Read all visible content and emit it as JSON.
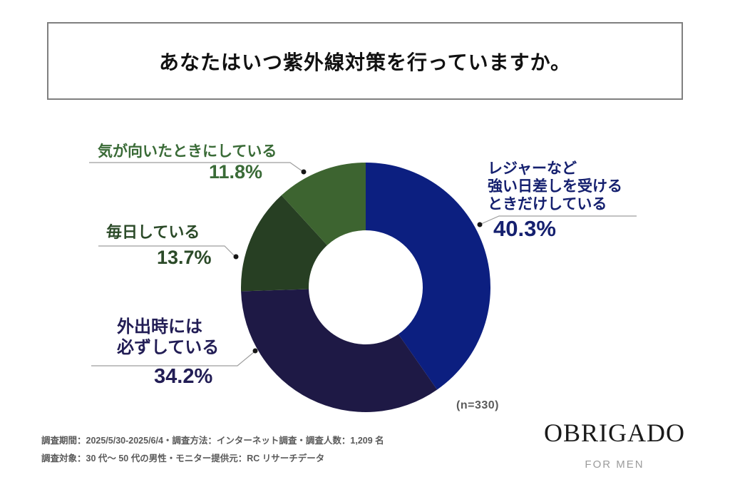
{
  "title": "あなたはいつ紫外線対策を行っていますか。",
  "chart_data": {
    "type": "pie",
    "style": "donut",
    "start_angle_deg": -90,
    "direction": "clockwise",
    "n_label": "(n=330)",
    "segments": [
      {
        "label": "レジャーなど強い日差しを受けるときだけしている",
        "label_lines": [
          "レジャーなど",
          "強い日差しを受ける",
          "ときだけしている"
        ],
        "value": 40.3,
        "value_label": "40.3%",
        "color": "#0c1f80",
        "label_color": "#15206f"
      },
      {
        "label": "外出時には必ずしている",
        "label_lines": [
          "外出時には",
          "必ずしている"
        ],
        "value": 34.2,
        "value_label": "34.2%",
        "color": "#1e1945",
        "label_color": "#221d55"
      },
      {
        "label": "毎日している",
        "label_lines": [
          "毎日している"
        ],
        "value": 13.7,
        "value_label": "13.7%",
        "color": "#273f23",
        "label_color": "#2b4a28"
      },
      {
        "label": "気が向いたときにしている",
        "label_lines": [
          "気が向いたときにしている"
        ],
        "value": 11.8,
        "value_label": "11.8%",
        "color": "#3d6430",
        "label_color": "#3a6b37"
      }
    ]
  },
  "footer": {
    "line1": "調査期間：2025/5/30-2025/6/4・調査方法：インターネット調査・調査人数：1,209 名",
    "line2": "調査対象：30 代～ 50 代の男性・モニター提供元：RC リサーチデータ"
  },
  "brand": {
    "logo": "OBRIGADO",
    "tagline": "FOR MEN"
  }
}
